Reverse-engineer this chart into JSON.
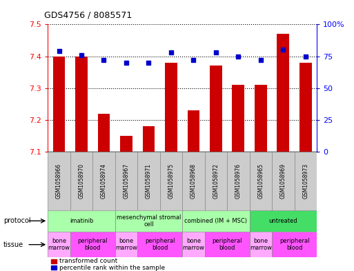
{
  "title": "GDS4756 / 8085571",
  "samples": [
    "GSM1058966",
    "GSM1058970",
    "GSM1058974",
    "GSM1058967",
    "GSM1058971",
    "GSM1058975",
    "GSM1058968",
    "GSM1058972",
    "GSM1058976",
    "GSM1058965",
    "GSM1058969",
    "GSM1058973"
  ],
  "bar_values": [
    7.4,
    7.4,
    7.22,
    7.15,
    7.18,
    7.38,
    7.23,
    7.37,
    7.31,
    7.31,
    7.47,
    7.38
  ],
  "percentile_values": [
    79,
    76,
    72,
    70,
    70,
    78,
    72,
    78,
    75,
    72,
    80,
    75
  ],
  "bar_color": "#cc0000",
  "percentile_color": "#0000cc",
  "ymin": 7.1,
  "ymax": 7.5,
  "y_ticks": [
    7.1,
    7.2,
    7.3,
    7.4,
    7.5
  ],
  "y2min": 0,
  "y2max": 100,
  "y2_ticks": [
    0,
    25,
    50,
    75,
    100
  ],
  "y2_labels": [
    "0",
    "25",
    "50",
    "75",
    "100%"
  ],
  "protocol_groups": [
    {
      "label": "imatinib",
      "start": 0,
      "end": 2,
      "color": "#aaffaa"
    },
    {
      "label": "mesenchymal stromal\ncell",
      "start": 3,
      "end": 5,
      "color": "#aaffaa"
    },
    {
      "label": "combined (IM + MSC)",
      "start": 6,
      "end": 8,
      "color": "#aaffaa"
    },
    {
      "label": "untreated",
      "start": 9,
      "end": 11,
      "color": "#44dd66"
    }
  ],
  "tissue_groups": [
    {
      "label": "bone\nmarrow",
      "start": 0,
      "end": 0,
      "color": "#ffaaff"
    },
    {
      "label": "peripheral\nblood",
      "start": 1,
      "end": 2,
      "color": "#ff55ff"
    },
    {
      "label": "bone\nmarrow",
      "start": 3,
      "end": 3,
      "color": "#ffaaff"
    },
    {
      "label": "peripheral\nblood",
      "start": 4,
      "end": 5,
      "color": "#ff55ff"
    },
    {
      "label": "bone\nmarrow",
      "start": 6,
      "end": 6,
      "color": "#ffaaff"
    },
    {
      "label": "peripheral\nblood",
      "start": 7,
      "end": 8,
      "color": "#ff55ff"
    },
    {
      "label": "bone\nmarrow",
      "start": 9,
      "end": 9,
      "color": "#ffaaff"
    },
    {
      "label": "peripheral\nblood",
      "start": 10,
      "end": 11,
      "color": "#ff55ff"
    }
  ],
  "legend_transformed": "transformed count",
  "legend_percentile": "percentile rank within the sample",
  "protocol_label": "protocol",
  "tissue_label": "tissue",
  "background_color": "#ffffff",
  "plot_bg_color": "#ffffff",
  "bar_width": 0.55,
  "figsize": [
    5.13,
    3.93
  ],
  "dpi": 100
}
